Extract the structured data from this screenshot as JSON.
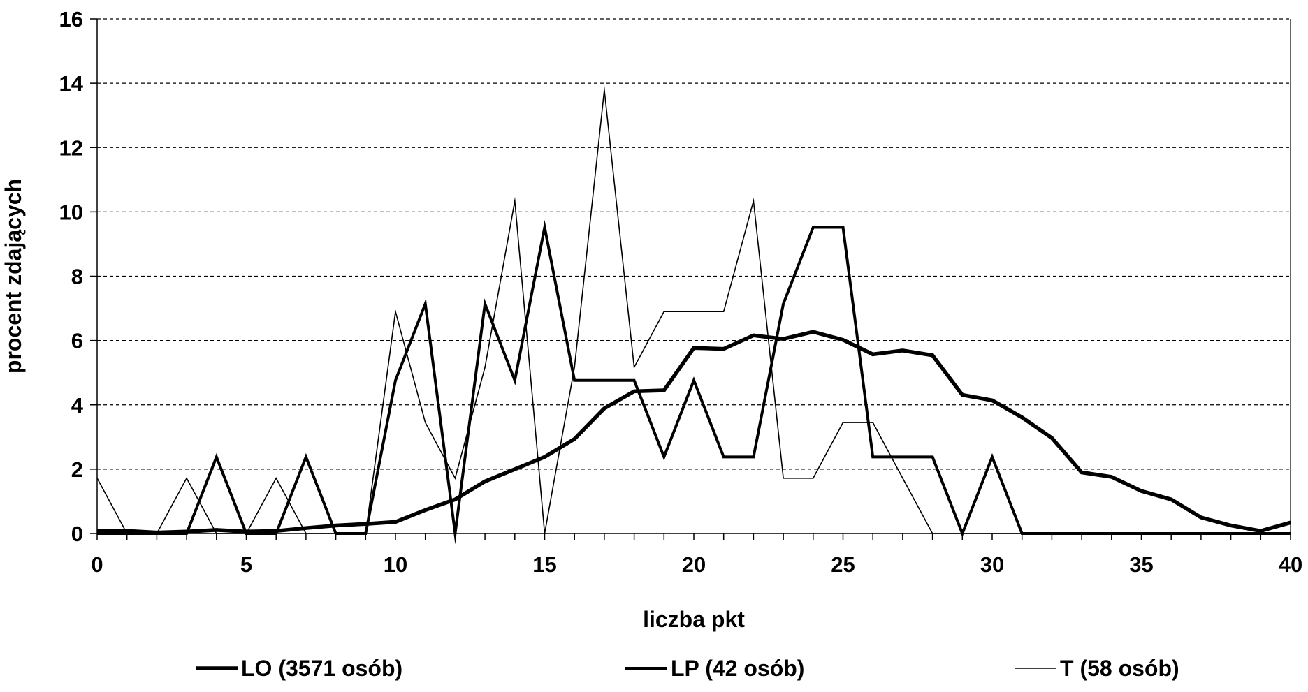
{
  "chart_data": {
    "type": "line",
    "title": "",
    "xlabel": "liczba pkt",
    "ylabel": "procent zdających",
    "xlim": [
      0,
      40
    ],
    "ylim": [
      0,
      16
    ],
    "x_ticks": [
      0,
      5,
      10,
      15,
      20,
      25,
      30,
      35,
      40
    ],
    "x_ticks_display": [
      "0",
      "5",
      "10",
      "15",
      "20",
      "25",
      "30",
      "35",
      "40"
    ],
    "y_ticks": [
      0,
      2,
      4,
      6,
      8,
      10,
      12,
      14,
      16
    ],
    "y_ticks_display": [
      "0",
      "2",
      "4",
      "6",
      "8",
      "10",
      "12",
      "14",
      "16"
    ],
    "grid": "horizontal dashed",
    "legend_position": "bottom",
    "x": [
      0,
      1,
      2,
      3,
      4,
      5,
      6,
      7,
      8,
      9,
      10,
      11,
      12,
      13,
      14,
      15,
      16,
      17,
      18,
      19,
      20,
      21,
      22,
      23,
      24,
      25,
      26,
      27,
      28,
      29,
      30,
      31,
      32,
      33,
      34,
      35,
      36,
      37,
      38,
      39,
      40
    ],
    "series": [
      {
        "name": "LO (3571 osób)",
        "style": "thick",
        "values": [
          0.08,
          0.08,
          0.03,
          0.06,
          0.11,
          0.06,
          0.08,
          0.17,
          0.25,
          0.3,
          0.36,
          0.73,
          1.06,
          1.62,
          2.0,
          2.38,
          2.94,
          3.89,
          4.42,
          4.45,
          5.77,
          5.74,
          6.16,
          6.05,
          6.27,
          6.02,
          5.57,
          5.69,
          5.54,
          4.31,
          4.14,
          3.61,
          2.97,
          1.9,
          1.76,
          1.32,
          1.06,
          0.5,
          0.25,
          0.08,
          0.34
        ]
      },
      {
        "name": "LP (42 osób)",
        "style": "medium",
        "values": [
          0,
          0,
          0,
          0,
          2.38,
          0,
          0,
          2.38,
          0,
          0,
          4.76,
          7.14,
          0,
          7.14,
          4.76,
          9.52,
          4.76,
          4.76,
          4.76,
          2.38,
          4.76,
          2.38,
          2.38,
          7.14,
          9.52,
          9.52,
          2.38,
          2.38,
          2.38,
          0,
          2.38,
          0,
          0,
          0,
          0,
          0,
          0,
          0,
          0,
          0,
          0
        ]
      },
      {
        "name": "T (58 osób)",
        "style": "thin",
        "values": [
          1.72,
          0,
          0,
          1.72,
          0,
          0,
          1.72,
          0,
          0,
          0,
          6.9,
          3.45,
          1.72,
          5.17,
          10.34,
          0,
          5.17,
          13.79,
          5.17,
          6.9,
          6.9,
          6.9,
          10.34,
          1.72,
          1.72,
          3.45,
          3.45,
          1.72,
          0,
          0,
          0,
          0,
          0,
          0,
          0,
          0,
          0,
          0,
          0,
          0,
          0
        ]
      }
    ]
  }
}
